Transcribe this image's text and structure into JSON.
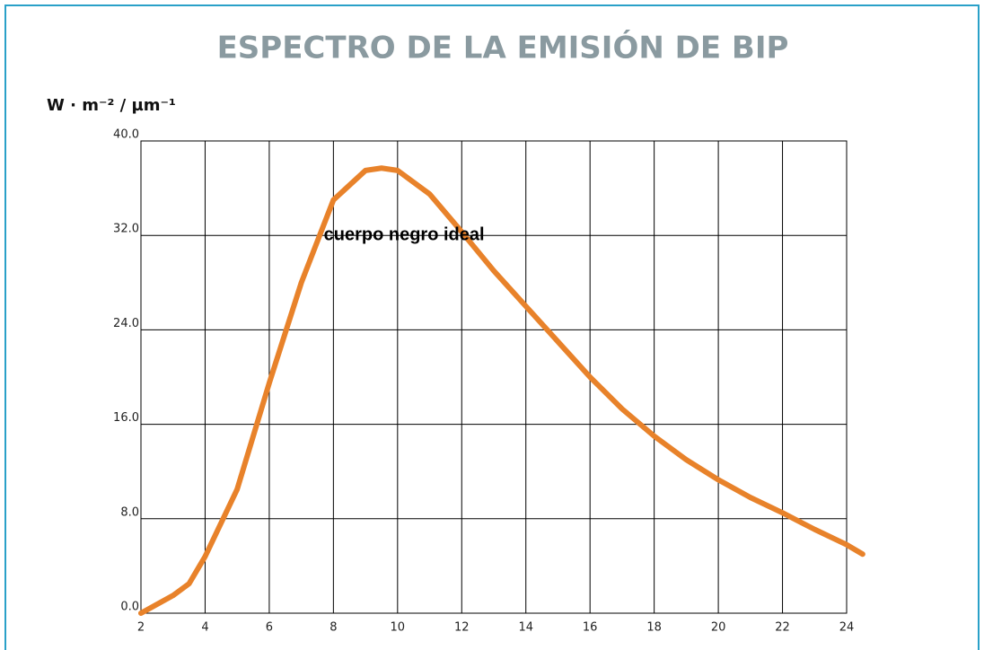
{
  "chart_data": {
    "type": "line",
    "title": "ESPECTRO DE LA EMISIÓN DE BIP",
    "y_label": "W · m⁻² / µm⁻¹",
    "annotation": {
      "text": "cuerpo negro ideal",
      "x": 7.7,
      "y": 32
    },
    "xlim": [
      2,
      24
    ],
    "ylim": [
      0,
      40
    ],
    "xticks": [
      2,
      4,
      6,
      8,
      10,
      12,
      14,
      16,
      18,
      20,
      22,
      24
    ],
    "yticks": [
      {
        "value": 0,
        "label": "0.0"
      },
      {
        "value": 8,
        "label": "8.0"
      },
      {
        "value": 16,
        "label": "16.0"
      },
      {
        "value": 24,
        "label": "24.0"
      },
      {
        "value": 32,
        "label": "32.0"
      },
      {
        "value": 40,
        "label": "40.0"
      }
    ],
    "grid": true,
    "series": [
      {
        "name": "cuerpo negro ideal",
        "color": "#e8822a",
        "x": [
          2,
          3,
          3.5,
          4,
          5,
          6,
          7,
          8,
          9,
          9.5,
          10,
          11,
          12,
          13,
          14,
          15,
          16,
          17,
          18,
          19,
          20,
          21,
          22,
          23,
          24,
          24.5
        ],
        "values": [
          0,
          1.5,
          2.5,
          4.8,
          10.5,
          19.5,
          28,
          35,
          37.5,
          37.7,
          37.5,
          35.5,
          32.3,
          29,
          26,
          23,
          20,
          17.3,
          15,
          13,
          11.3,
          9.8,
          8.5,
          7.1,
          5.8,
          5.0
        ]
      }
    ]
  }
}
